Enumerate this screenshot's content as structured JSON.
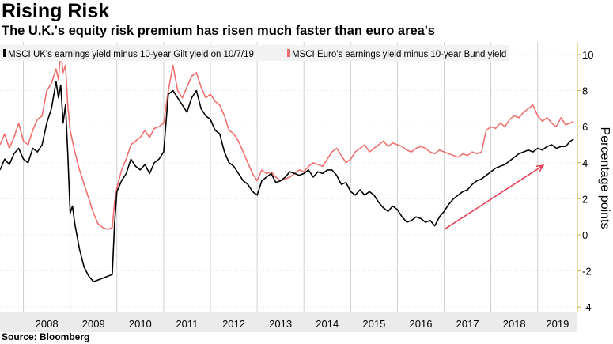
{
  "title": "Rising Risk",
  "subtitle": "The U.K.'s equity risk premium has risen much faster than euro area's",
  "source": "Source: Bloomberg",
  "chart_data": {
    "type": "line",
    "ylabel": "Percentage points",
    "ylim": [
      -4.3,
      10.7
    ],
    "yticks": [
      10,
      8,
      6,
      4,
      2,
      0,
      -2,
      -4
    ],
    "ytick_labels": [
      "10",
      "8",
      "6",
      "4",
      "2",
      "0",
      "-2",
      "-4"
    ],
    "xlim": [
      2007.5,
      2019.85
    ],
    "year_labels": [
      "2008",
      "2009",
      "2010",
      "2011",
      "2012",
      "2013",
      "2014",
      "2015",
      "2016",
      "2017",
      "2018",
      "2019"
    ],
    "grid": true,
    "legend_position": "top-left",
    "series": [
      {
        "name": "MSCI UK's earnings yield minus 10-year Gilt yield on 10/7/19",
        "color": "#000000",
        "x": [
          2007.5,
          2007.6,
          2007.7,
          2007.8,
          2007.9,
          2008.0,
          2008.1,
          2008.2,
          2008.3,
          2008.4,
          2008.5,
          2008.6,
          2008.7,
          2008.75,
          2008.8,
          2008.85,
          2008.9,
          2008.95,
          2009.0,
          2009.05,
          2009.1,
          2009.2,
          2009.3,
          2009.4,
          2009.5,
          2009.6,
          2009.7,
          2009.8,
          2009.9,
          2009.95,
          2010.0,
          2010.1,
          2010.2,
          2010.3,
          2010.4,
          2010.5,
          2010.6,
          2010.7,
          2010.8,
          2010.9,
          2011.0,
          2011.1,
          2011.2,
          2011.3,
          2011.4,
          2011.5,
          2011.6,
          2011.7,
          2011.8,
          2011.9,
          2012.0,
          2012.1,
          2012.2,
          2012.3,
          2012.4,
          2012.5,
          2012.6,
          2012.7,
          2012.8,
          2012.9,
          2013.0,
          2013.1,
          2013.2,
          2013.3,
          2013.4,
          2013.5,
          2013.6,
          2013.7,
          2013.8,
          2013.9,
          2014.0,
          2014.1,
          2014.2,
          2014.3,
          2014.4,
          2014.5,
          2014.6,
          2014.7,
          2014.8,
          2014.9,
          2015.0,
          2015.1,
          2015.2,
          2015.3,
          2015.4,
          2015.5,
          2015.6,
          2015.7,
          2015.8,
          2015.9,
          2016.0,
          2016.1,
          2016.2,
          2016.3,
          2016.4,
          2016.5,
          2016.6,
          2016.7,
          2016.8,
          2016.9,
          2017.0,
          2017.1,
          2017.2,
          2017.3,
          2017.4,
          2017.5,
          2017.6,
          2017.7,
          2017.8,
          2017.9,
          2018.0,
          2018.1,
          2018.2,
          2018.3,
          2018.4,
          2018.5,
          2018.6,
          2018.7,
          2018.8,
          2018.9,
          2019.0,
          2019.1,
          2019.2,
          2019.3,
          2019.4,
          2019.5,
          2019.6,
          2019.7,
          2019.77
        ],
        "y": [
          3.6,
          4.2,
          3.9,
          4.5,
          4.8,
          4.2,
          4.0,
          4.8,
          4.6,
          5.0,
          6.2,
          7.0,
          8.5,
          7.6,
          8.3,
          6.2,
          7.2,
          4.5,
          1.2,
          1.6,
          0.6,
          -0.8,
          -1.8,
          -2.3,
          -2.6,
          -2.5,
          -2.4,
          -2.3,
          -2.2,
          0.6,
          2.4,
          3.0,
          3.4,
          4.2,
          3.8,
          3.6,
          3.9,
          3.4,
          4.0,
          4.2,
          4.6,
          7.8,
          8.0,
          7.6,
          7.2,
          6.8,
          7.6,
          8.0,
          7.0,
          6.6,
          6.4,
          5.8,
          5.6,
          4.6,
          4.0,
          3.8,
          3.4,
          3.0,
          2.8,
          2.4,
          2.2,
          3.0,
          3.2,
          3.4,
          2.9,
          3.0,
          3.2,
          3.5,
          3.4,
          3.3,
          3.4,
          3.6,
          3.2,
          3.5,
          3.4,
          3.6,
          3.6,
          3.3,
          2.8,
          2.9,
          2.4,
          2.2,
          2.5,
          2.2,
          2.4,
          2.2,
          1.8,
          1.5,
          1.3,
          1.6,
          1.4,
          1.0,
          0.7,
          0.8,
          1.0,
          0.9,
          0.7,
          0.8,
          0.5,
          1.0,
          1.3,
          1.7,
          2.0,
          2.2,
          2.4,
          2.5,
          2.8,
          3.0,
          3.1,
          3.3,
          3.5,
          3.7,
          3.8,
          3.9,
          4.1,
          4.3,
          4.5,
          4.6,
          4.7,
          4.6,
          4.8,
          4.7,
          4.9,
          5.0,
          4.8,
          4.9,
          4.9,
          5.2,
          5.3
        ]
      },
      {
        "name": "MSCI Euro's earnings yield minus 10-year Bund yield",
        "color": "#f07070",
        "x": [
          2007.5,
          2007.6,
          2007.7,
          2007.8,
          2007.9,
          2008.0,
          2008.1,
          2008.2,
          2008.3,
          2008.4,
          2008.5,
          2008.6,
          2008.7,
          2008.75,
          2008.8,
          2008.85,
          2008.9,
          2008.95,
          2009.0,
          2009.05,
          2009.1,
          2009.2,
          2009.3,
          2009.4,
          2009.5,
          2009.6,
          2009.7,
          2009.8,
          2009.9,
          2009.95,
          2010.0,
          2010.1,
          2010.2,
          2010.3,
          2010.4,
          2010.5,
          2010.6,
          2010.7,
          2010.8,
          2010.9,
          2011.0,
          2011.1,
          2011.2,
          2011.3,
          2011.4,
          2011.5,
          2011.6,
          2011.7,
          2011.8,
          2011.9,
          2012.0,
          2012.1,
          2012.2,
          2012.3,
          2012.4,
          2012.5,
          2012.6,
          2012.7,
          2012.8,
          2012.9,
          2013.0,
          2013.1,
          2013.2,
          2013.3,
          2013.4,
          2013.5,
          2013.6,
          2013.7,
          2013.8,
          2013.9,
          2014.0,
          2014.1,
          2014.2,
          2014.3,
          2014.4,
          2014.5,
          2014.6,
          2014.7,
          2014.8,
          2014.9,
          2015.0,
          2015.1,
          2015.2,
          2015.3,
          2015.4,
          2015.5,
          2015.6,
          2015.7,
          2015.8,
          2015.9,
          2016.0,
          2016.1,
          2016.2,
          2016.3,
          2016.4,
          2016.5,
          2016.6,
          2016.7,
          2016.8,
          2016.9,
          2017.0,
          2017.1,
          2017.2,
          2017.3,
          2017.4,
          2017.5,
          2017.6,
          2017.7,
          2017.8,
          2017.9,
          2018.0,
          2018.1,
          2018.2,
          2018.3,
          2018.4,
          2018.5,
          2018.6,
          2018.7,
          2018.8,
          2018.9,
          2019.0,
          2019.1,
          2019.2,
          2019.3,
          2019.4,
          2019.5,
          2019.6,
          2019.7,
          2019.77
        ],
        "y": [
          5.0,
          5.6,
          4.8,
          5.4,
          6.2,
          5.2,
          5.0,
          5.8,
          6.4,
          6.6,
          8.0,
          8.4,
          9.2,
          8.6,
          10.2,
          9.0,
          9.4,
          7.2,
          5.8,
          5.2,
          4.6,
          3.6,
          2.8,
          2.0,
          1.2,
          0.6,
          0.4,
          0.3,
          0.4,
          1.8,
          2.6,
          3.6,
          4.2,
          5.0,
          5.2,
          5.4,
          5.8,
          5.4,
          5.9,
          6.0,
          6.2,
          8.0,
          9.4,
          8.0,
          7.6,
          8.2,
          8.8,
          9.0,
          8.2,
          7.6,
          7.8,
          7.4,
          7.2,
          6.6,
          5.8,
          5.6,
          5.2,
          4.6,
          4.0,
          3.4,
          3.0,
          3.6,
          3.4,
          3.5,
          3.2,
          3.0,
          3.1,
          3.2,
          3.4,
          3.6,
          3.5,
          3.8,
          4.0,
          3.9,
          3.8,
          4.2,
          4.6,
          4.8,
          4.4,
          4.0,
          4.2,
          4.6,
          4.8,
          5.0,
          4.6,
          4.8,
          5.0,
          5.2,
          4.9,
          5.1,
          5.0,
          4.9,
          4.7,
          4.6,
          4.8,
          4.9,
          4.8,
          4.6,
          4.5,
          4.7,
          4.6,
          4.5,
          4.4,
          4.3,
          4.5,
          4.4,
          4.6,
          4.5,
          4.6,
          5.8,
          6.0,
          5.9,
          6.2,
          6.0,
          6.4,
          6.6,
          6.5,
          6.8,
          7.0,
          7.2,
          6.6,
          6.3,
          6.5,
          6.2,
          6.0,
          6.5,
          6.1,
          6.2,
          6.3
        ]
      }
    ],
    "annotation": {
      "type": "arrow",
      "color": "#e8384f",
      "from": [
        2017.0,
        0.3
      ],
      "to": [
        2019.12,
        3.85
      ]
    }
  }
}
